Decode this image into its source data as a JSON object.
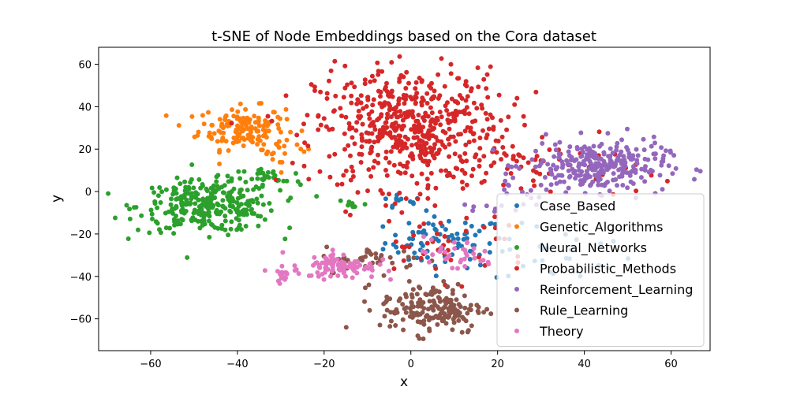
{
  "chart_data": {
    "type": "scatter",
    "title": "t-SNE of Node Embeddings based on the Cora dataset",
    "xlabel": "x",
    "ylabel": "y",
    "xlim": [
      -72,
      69
    ],
    "ylim": [
      -75,
      68
    ],
    "xticks": [
      -60,
      -40,
      -20,
      0,
      20,
      40,
      60
    ],
    "yticks": [
      -60,
      -40,
      -20,
      0,
      20,
      40,
      60
    ],
    "grid": false,
    "legend_position": "lower-right",
    "series": [
      {
        "name": "Case_Based",
        "color": "#1f77b4",
        "clusters": [
          {
            "cx": 8,
            "cy": -24,
            "sx": 7,
            "sy": 6,
            "n": 80
          },
          {
            "cx": -3,
            "cy": -5,
            "sx": 3,
            "sy": 2,
            "n": 12
          },
          {
            "cx": 35,
            "cy": -30,
            "sx": 8,
            "sy": 7,
            "n": 25
          }
        ]
      },
      {
        "name": "Genetic_Algorithms",
        "color": "#ff7f0e",
        "clusters": [
          {
            "cx": -39,
            "cy": 30,
            "sx": 5,
            "sy": 5,
            "n": 150
          },
          {
            "cx": -30,
            "cy": 20,
            "sx": 4,
            "sy": 5,
            "n": 20
          }
        ]
      },
      {
        "name": "Neural_Networks",
        "color": "#2ca02c",
        "clusters": [
          {
            "cx": -47,
            "cy": -7,
            "sx": 8,
            "sy": 6,
            "n": 300
          },
          {
            "cx": -33,
            "cy": 6,
            "sx": 4,
            "sy": 3,
            "n": 30
          },
          {
            "cx": -14,
            "cy": -6,
            "sx": 2,
            "sy": 2,
            "n": 8
          }
        ]
      },
      {
        "name": "Probabilistic_Methods",
        "color": "#d62728",
        "clusters": [
          {
            "cx": 0,
            "cy": 30,
            "sx": 11,
            "sy": 14,
            "n": 550
          },
          {
            "cx": 32,
            "cy": 10,
            "sx": 10,
            "sy": 7,
            "n": 50
          },
          {
            "cx": 8,
            "cy": -25,
            "sx": 10,
            "sy": 8,
            "n": 40
          }
        ]
      },
      {
        "name": "Reinforcement_Learning",
        "color": "#9467bd",
        "clusters": [
          {
            "cx": 43,
            "cy": 12,
            "sx": 8,
            "sy": 6,
            "n": 280
          },
          {
            "cx": 22,
            "cy": -5,
            "sx": 4,
            "sy": 4,
            "n": 20
          }
        ]
      },
      {
        "name": "Rule_Learning",
        "color": "#8c564b",
        "clusters": [
          {
            "cx": 5,
            "cy": -55,
            "sx": 6,
            "sy": 6,
            "n": 180
          },
          {
            "cx": -8,
            "cy": -32,
            "sx": 6,
            "sy": 3,
            "n": 40
          }
        ]
      },
      {
        "name": "Theory",
        "color": "#e377c2",
        "clusters": [
          {
            "cx": -16,
            "cy": -35,
            "sx": 4,
            "sy": 3,
            "n": 90
          },
          {
            "cx": -29,
            "cy": -38,
            "sx": 2,
            "sy": 2,
            "n": 20
          },
          {
            "cx": 10,
            "cy": -30,
            "sx": 5,
            "sy": 4,
            "n": 35
          }
        ]
      }
    ]
  }
}
